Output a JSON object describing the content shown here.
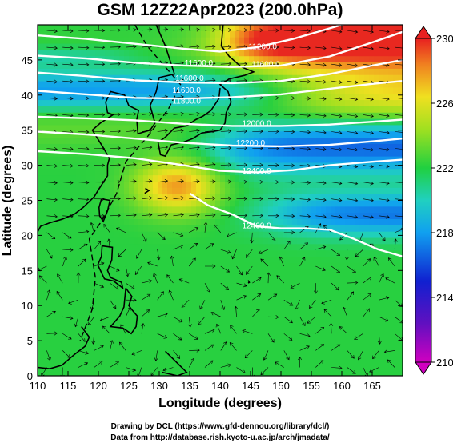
{
  "chart_data": {
    "type": "map",
    "title": "GSM 12Z22Apr2023 (200.0hPa)",
    "xlabel": "Longitude (degrees)",
    "ylabel": "Latitude  (degrees)",
    "xlim": [
      110,
      170
    ],
    "ylim": [
      0,
      50
    ],
    "x_ticks": [
      "110",
      "115",
      "120",
      "125",
      "130",
      "135",
      "140",
      "145",
      "150",
      "155",
      "160",
      "165"
    ],
    "y_ticks": [
      "0",
      "5",
      "10",
      "15",
      "20",
      "25",
      "30",
      "35",
      "40",
      "45"
    ],
    "colorbar": {
      "range": [
        210,
        230
      ],
      "ticks": [
        "210",
        "214",
        "218",
        "222",
        "226",
        "230"
      ]
    },
    "contour_labels": [
      {
        "text": "11200.0",
        "lon": 147.0,
        "lat": 46.5
      },
      {
        "text": "11600.0",
        "lon": 136.5,
        "lat": 44.2
      },
      {
        "text": "11600.0",
        "lon": 147.5,
        "lat": 44.0
      },
      {
        "text": "11600.0",
        "lon": 135.0,
        "lat": 42.0
      },
      {
        "text": "11600.0",
        "lon": 134.5,
        "lat": 40.3
      },
      {
        "text": "11800.0",
        "lon": 134.5,
        "lat": 38.8
      },
      {
        "text": "12000.0",
        "lon": 146.0,
        "lat": 35.6
      },
      {
        "text": "12200.0",
        "lon": 145.0,
        "lat": 32.8
      },
      {
        "text": "12400.0",
        "lon": 146.0,
        "lat": 28.8
      },
      {
        "text": "12400.0",
        "lon": 146.0,
        "lat": 21.0
      }
    ]
  },
  "credits": {
    "line1": "Drawing by DCL (https://www.gfd-dennou.org/library/dcl/)",
    "line2": "Data from http://database.rish.kyoto-u.ac.jp/arch/jmadata/"
  },
  "colors": {
    "cold": "#1020c0",
    "warm": "#e83020",
    "mid": "#20d040"
  }
}
